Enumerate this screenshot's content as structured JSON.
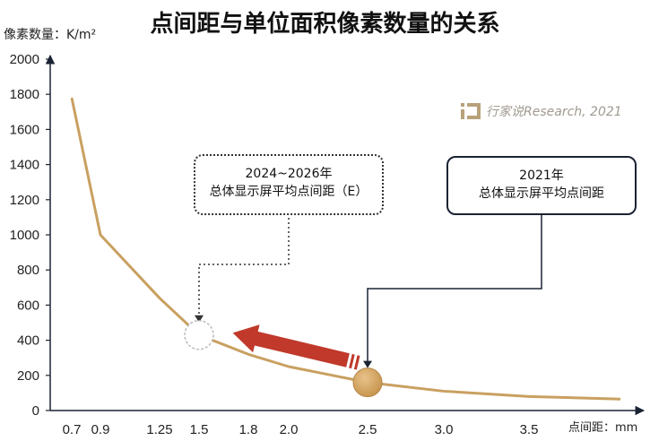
{
  "title": "点间距与单位面积像素数量的关系",
  "y_axis_label": "像素数量：K/m²",
  "x_axis_unit": "点间距：mm",
  "watermark": "行家说Research, 2021",
  "callouts": {
    "future": {
      "line1": "2024~2026年",
      "line2": "总体显示屏平均点间距（E）"
    },
    "current": {
      "line1": "2021年",
      "line2": "总体显示屏平均点间距"
    }
  },
  "colors": {
    "curve": "#c9a060",
    "arrow": "#c0392b",
    "marker_2021": "#c89650",
    "axis": "#1a2333"
  },
  "chart_data": {
    "type": "line",
    "title": "点间距与单位面积像素数量的关系",
    "xlabel": "点间距：mm",
    "ylabel": "像素数量：K/m²",
    "ylim": [
      0,
      2000
    ],
    "yticks": [
      0,
      200,
      400,
      600,
      800,
      1000,
      1200,
      1400,
      1600,
      1800,
      2000
    ],
    "xticks": [
      "0.7",
      "0.9",
      "1.25",
      "1.5",
      "1.8",
      "2.0",
      "2.5",
      "3.0",
      "3.5"
    ],
    "grid": false,
    "series": [
      {
        "x": [
          0.7,
          0.9,
          1.25,
          1.5,
          1.8,
          2.0,
          2.5,
          3.0,
          3.5,
          4.0
        ],
        "values": [
          1780,
          1000,
          640,
          430,
          320,
          250,
          160,
          110,
          80,
          65
        ]
      }
    ],
    "markers": [
      {
        "x": 1.5,
        "y": 430,
        "style": "dotted-hollow"
      },
      {
        "x": 2.5,
        "y": 160,
        "style": "filled"
      }
    ]
  }
}
